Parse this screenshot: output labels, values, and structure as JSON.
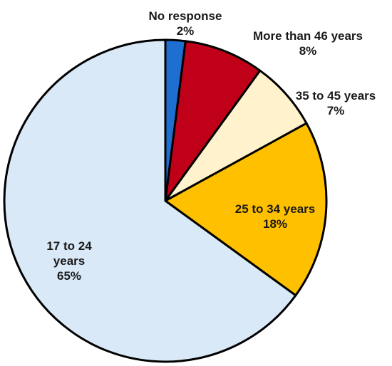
{
  "chart_data": {
    "type": "pie",
    "start_angle_deg": 0,
    "direction": "clockwise",
    "slices": [
      {
        "label": "No response",
        "value": 2,
        "value_label": "2%",
        "color": "#1F6FD1"
      },
      {
        "label": "More than 46 years",
        "value": 8,
        "value_label": "8%",
        "color": "#C00018"
      },
      {
        "label": "35 to 45 years",
        "value": 7,
        "value_label": "7%",
        "color": "#FFF2CC"
      },
      {
        "label": "25 to 34 years",
        "value": 18,
        "value_label": "18%",
        "color": "#FFC000"
      },
      {
        "label": "17 to 24 years",
        "value": 65,
        "value_label": "65%",
        "color": "#DAE9F7"
      }
    ]
  }
}
